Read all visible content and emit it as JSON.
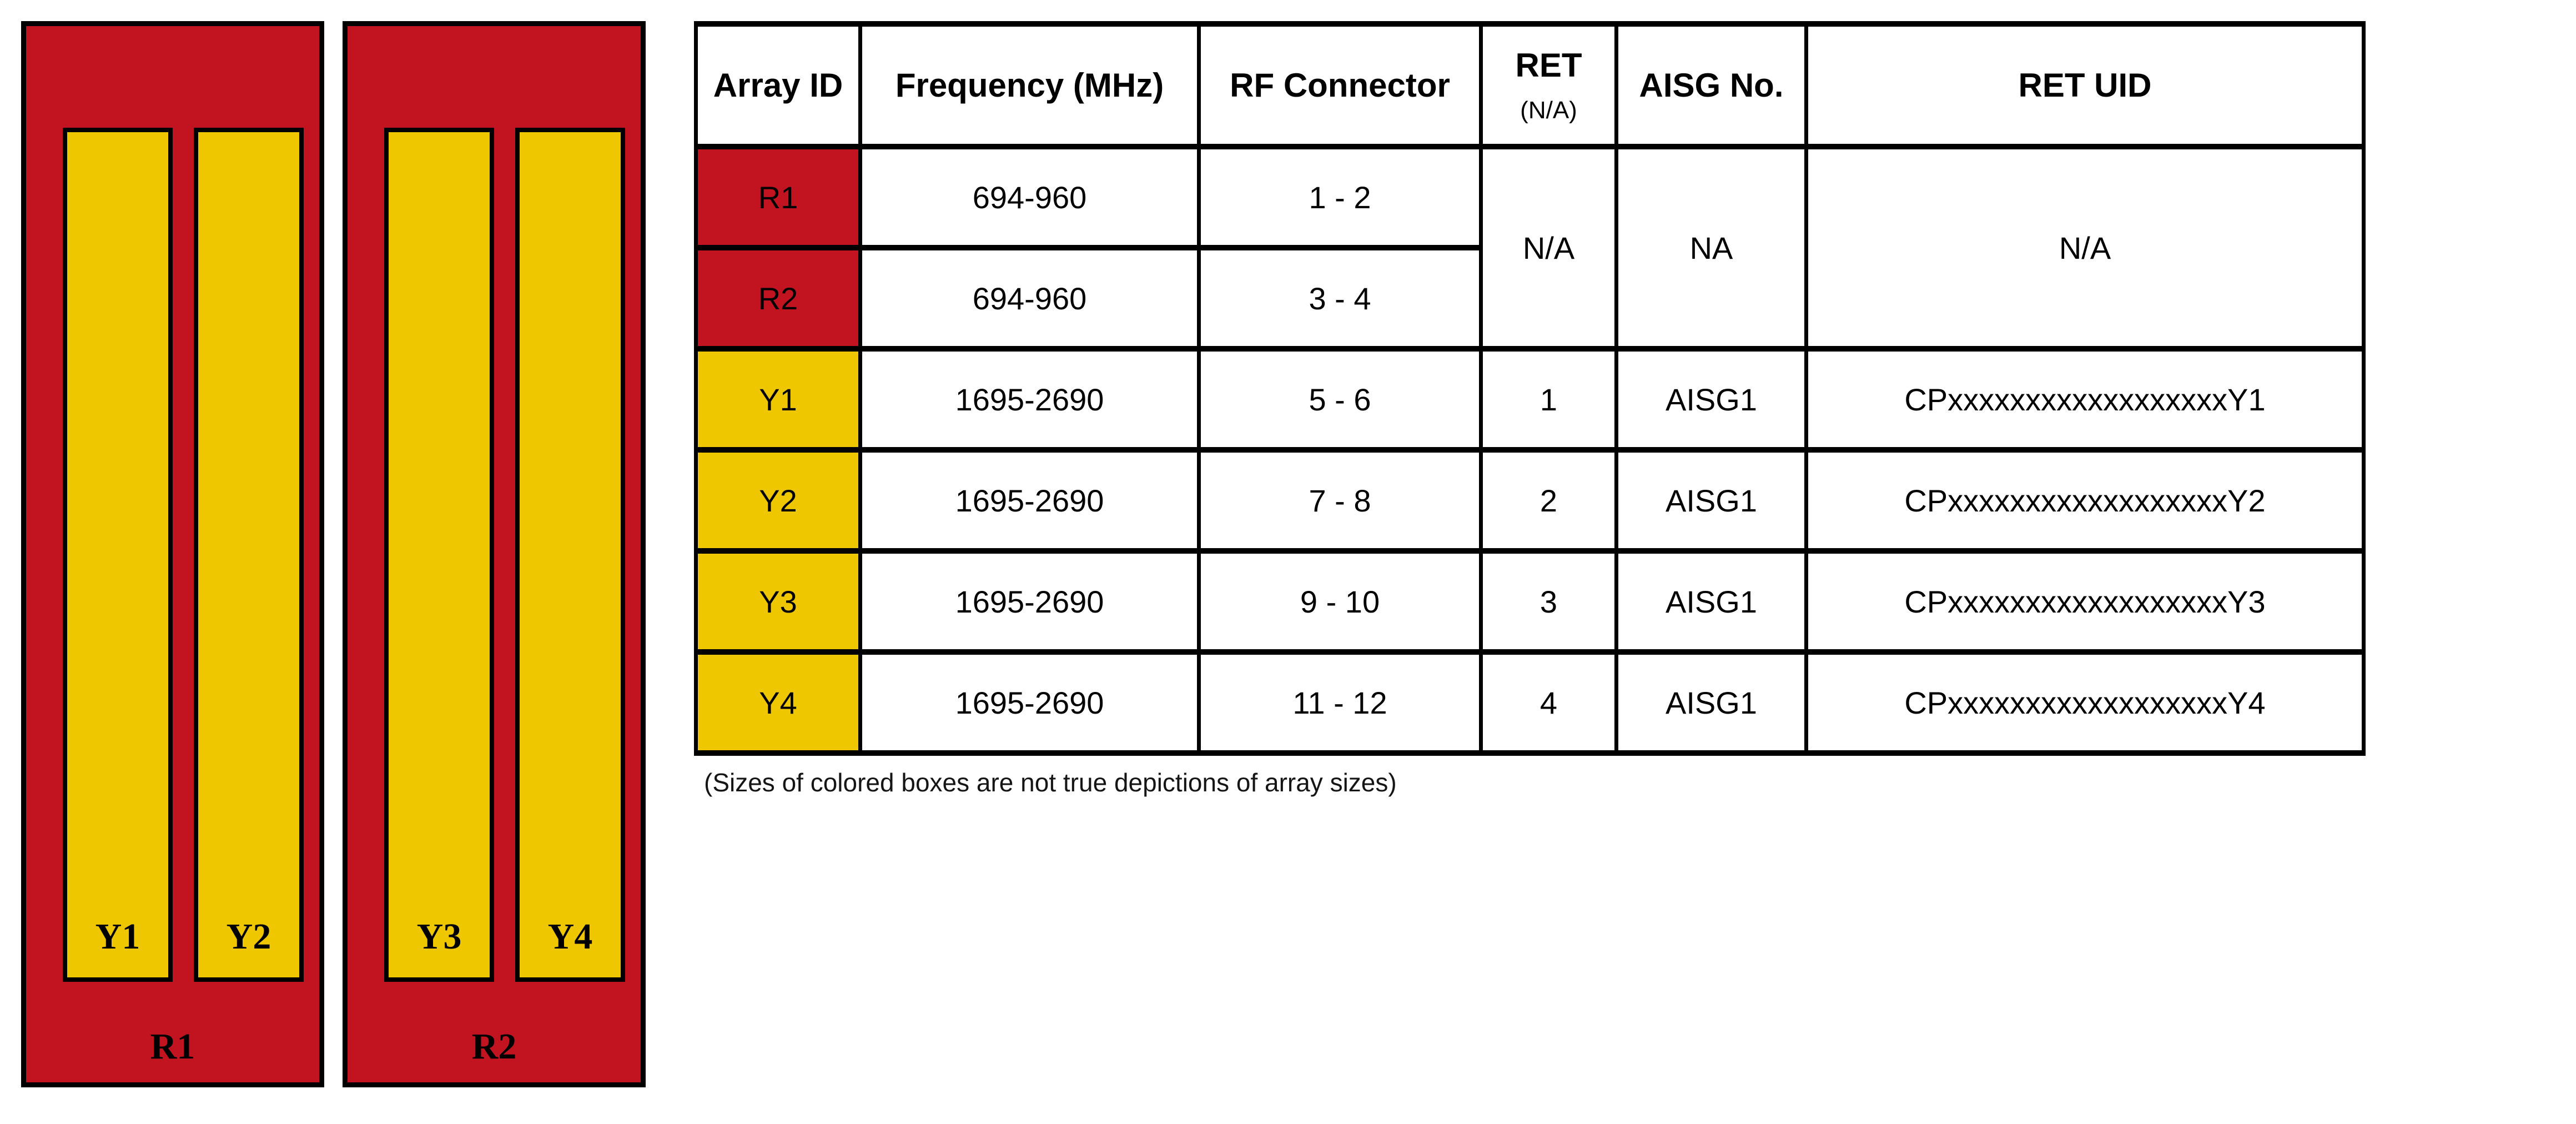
{
  "colors": {
    "array_red": "#C11420",
    "array_yellow": "#EFC700",
    "border_black": "#000000"
  },
  "diagram": {
    "panels": [
      {
        "label": "R1",
        "bars": [
          "Y1",
          "Y2"
        ]
      },
      {
        "label": "R2",
        "bars": [
          "Y3",
          "Y4"
        ]
      }
    ]
  },
  "table": {
    "headers": {
      "array_id": "Array ID",
      "frequency": "Frequency (MHz)",
      "rf_connector": "RF Connector",
      "ret": "RET",
      "ret_sub": "(N/A)",
      "aisg_no": "AISG No.",
      "ret_uid": "RET UID"
    },
    "merged_r_rows": {
      "ret": "N/A",
      "aisg_no": "NA",
      "ret_uid": "N/A"
    },
    "rows": [
      {
        "array_id": "R1",
        "frequency": "694-960",
        "rf_connector": "1 - 2"
      },
      {
        "array_id": "R2",
        "frequency": "694-960",
        "rf_connector": "3 - 4"
      },
      {
        "array_id": "Y1",
        "frequency": "1695-2690",
        "rf_connector": "5 - 6",
        "ret": "1",
        "aisg_no": "AISG1",
        "ret_uid": "CPxxxxxxxxxxxxxxxxxxY1"
      },
      {
        "array_id": "Y2",
        "frequency": "1695-2690",
        "rf_connector": "7 - 8",
        "ret": "2",
        "aisg_no": "AISG1",
        "ret_uid": "CPxxxxxxxxxxxxxxxxxxY2"
      },
      {
        "array_id": "Y3",
        "frequency": "1695-2690",
        "rf_connector": "9 - 10",
        "ret": "3",
        "aisg_no": "AISG1",
        "ret_uid": "CPxxxxxxxxxxxxxxxxxxY3"
      },
      {
        "array_id": "Y4",
        "frequency": "1695-2690",
        "rf_connector": "11 - 12",
        "ret": "4",
        "aisg_no": "AISG1",
        "ret_uid": "CPxxxxxxxxxxxxxxxxxxY4"
      }
    ]
  },
  "note": "(Sizes of colored boxes are not true depictions of array sizes)"
}
